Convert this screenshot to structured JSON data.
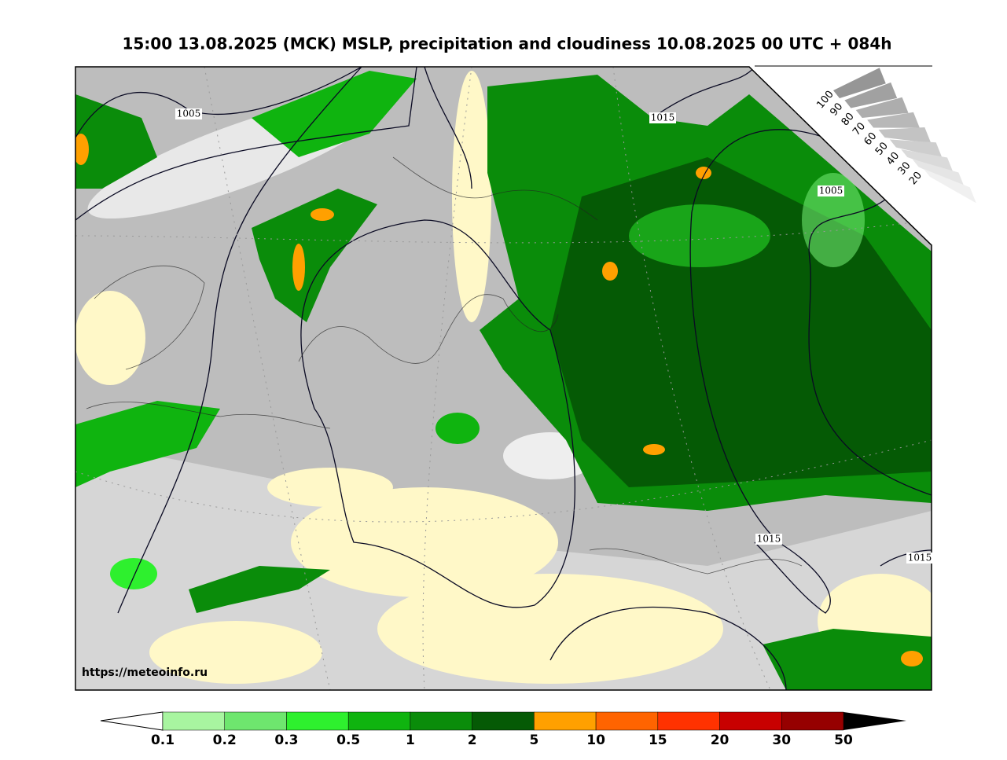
{
  "header": {
    "title": "15:00 13.08.2025 (MCK) MSLP, precipitation and cloudiness 10.08.2025 00 UTC + 084h"
  },
  "map": {
    "isobar_labels": [
      1005,
      1015,
      1005,
      1015,
      1015
    ],
    "url": "https://meteoinfo.ru"
  },
  "cloudiness_scale": {
    "labels": [
      100,
      90,
      80,
      70,
      60,
      50,
      40,
      30,
      20
    ]
  },
  "precip_legend": {
    "labels": [
      0.1,
      0.2,
      0.3,
      0.5,
      1,
      2,
      5,
      10,
      15,
      20,
      30,
      50
    ]
  }
}
